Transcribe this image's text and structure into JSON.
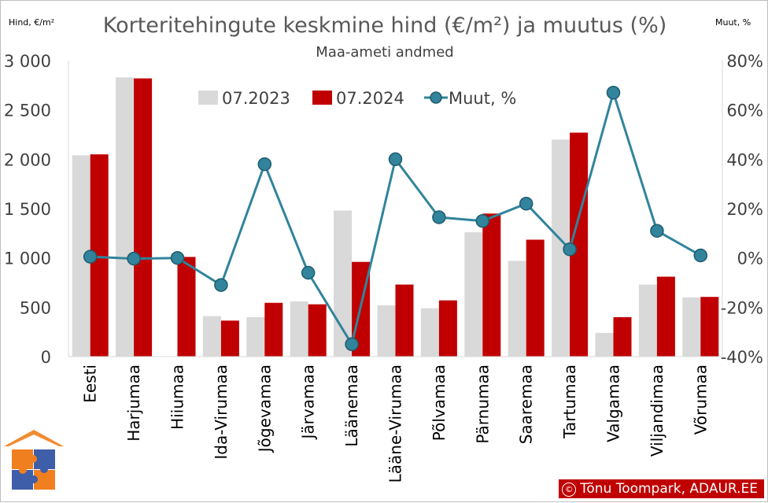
{
  "chart_data": {
    "type": "bar",
    "title": "Korteritehingute keskmine hind (€/m²) ja muutus (%)",
    "subtitle": "Maa-ameti andmed",
    "ylabel_left": "Hind, €/m²",
    "ylabel_right": "Muut, %",
    "ylim_left": [
      0,
      3000
    ],
    "ylim_right": [
      -40,
      80
    ],
    "yticks_left": [
      "0",
      "500",
      "1 000",
      "1 500",
      "2 000",
      "2 500",
      "3 000"
    ],
    "yticks_right": [
      "-40%",
      "-20%",
      "0%",
      "20%",
      "40%",
      "60%",
      "80%"
    ],
    "categories": [
      "Eesti",
      "Harjumaa",
      "Hiiumaa",
      "Ida-Virumaa",
      "Jõgevamaa",
      "Järvamaa",
      "Läänemaa",
      "Lääne-Virumaa",
      "Põlvamaa",
      "Pärnumaa",
      "Saaremaa",
      "Tartumaa",
      "Valgamaa",
      "Viljandimaa",
      "Võrumaa"
    ],
    "series": [
      {
        "name": "07.2023",
        "kind": "bar",
        "axis": "left",
        "color": "#d9d9d9",
        "values": [
          2040,
          2830,
          null,
          410,
          400,
          560,
          1480,
          520,
          490,
          1260,
          970,
          2200,
          240,
          730,
          600
        ]
      },
      {
        "name": "07.2024",
        "kind": "bar",
        "axis": "left",
        "color": "#c00000",
        "values": [
          2050,
          2820,
          1010,
          365,
          545,
          530,
          960,
          730,
          570,
          1450,
          1185,
          2270,
          400,
          810,
          605
        ]
      },
      {
        "name": "Muut, %",
        "kind": "line",
        "axis": "right",
        "color": "#31849b",
        "values": [
          0.5,
          -0.3,
          0,
          -11,
          38,
          -6,
          -35,
          40,
          16.5,
          15,
          22,
          3.5,
          67,
          11,
          1
        ]
      }
    ],
    "legend_position": "top",
    "grid": false
  },
  "credit": {
    "symbol": "©",
    "text": "Tõnu Toompark, ADAUR.EE",
    "color": "#c00000"
  },
  "logo": {
    "icon": "house-puzzle-logo"
  }
}
